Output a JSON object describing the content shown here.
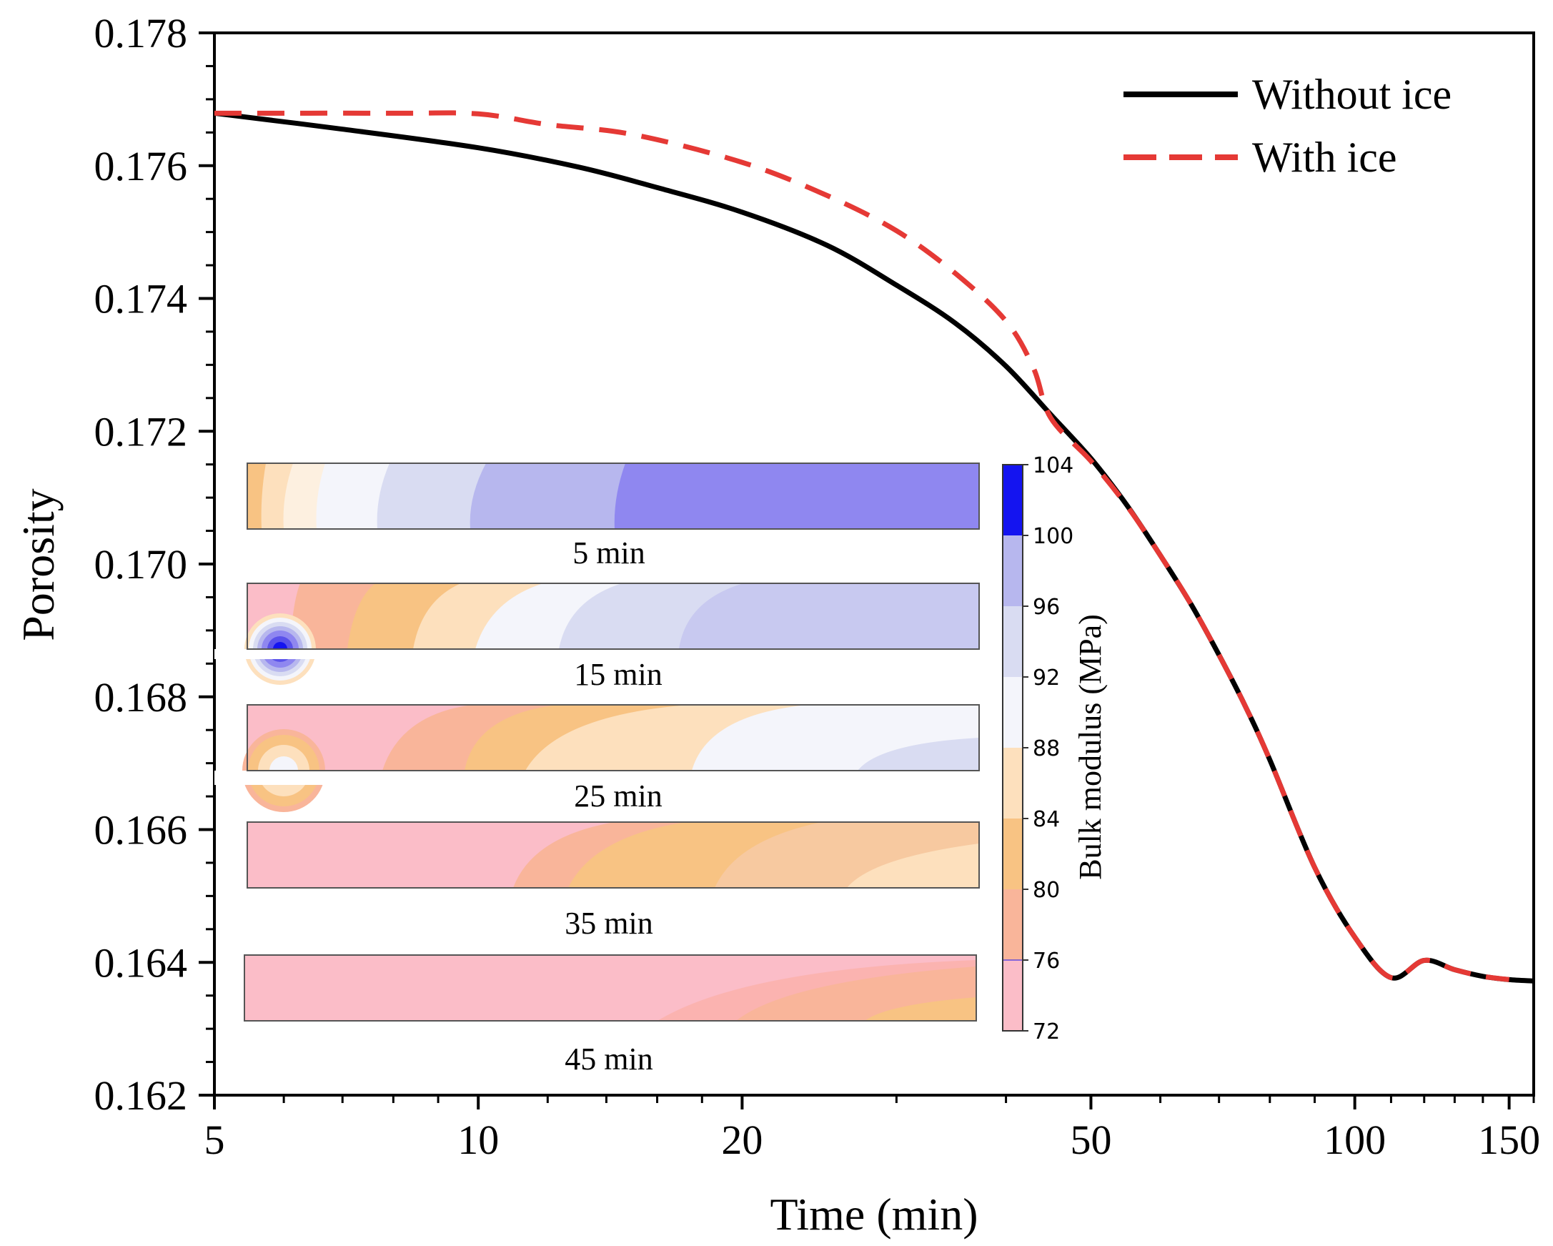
{
  "chart_data": {
    "type": "line",
    "title": "",
    "xlabel": "Time (min)",
    "ylabel": "Porosity",
    "xscale": "log",
    "xlim": [
      5,
      160
    ],
    "ylim": [
      0.162,
      0.178
    ],
    "x_ticks": [
      5,
      10,
      20,
      50,
      100,
      150
    ],
    "x_tick_labels": [
      "5",
      "10",
      "20",
      "50",
      "100",
      "150"
    ],
    "y_ticks": [
      0.162,
      0.164,
      0.166,
      0.168,
      0.17,
      0.172,
      0.174,
      0.176,
      0.178
    ],
    "y_tick_labels": [
      "0.162",
      "0.164",
      "0.166",
      "0.168",
      "0.170",
      "0.172",
      "0.174",
      "0.176",
      "0.178"
    ],
    "legend_position": "top-right",
    "series": [
      {
        "name": "Without ice",
        "color": "#000000",
        "style": "solid",
        "x": [
          5,
          7,
          10,
          13,
          16,
          20,
          25,
          30,
          35,
          40,
          45,
          50,
          55,
          60,
          65,
          70,
          75,
          80,
          90,
          100,
          110,
          120,
          130,
          140,
          150,
          160
        ],
        "y": [
          0.17679,
          0.17655,
          0.17627,
          0.17598,
          0.17567,
          0.1753,
          0.1748,
          0.1742,
          0.17363,
          0.17298,
          0.17225,
          0.17159,
          0.17088,
          0.17013,
          0.1694,
          0.16863,
          0.16786,
          0.16705,
          0.16543,
          0.16438,
          0.16377,
          0.16403,
          0.16389,
          0.16379,
          0.16374,
          0.16372
        ]
      },
      {
        "name": "With ice",
        "color": "#e53935",
        "style": "dashed",
        "x": [
          5,
          8,
          10,
          12,
          15,
          20,
          25,
          30,
          35,
          40,
          43,
          45,
          50,
          55,
          60,
          65,
          70,
          75,
          80,
          90,
          100,
          110,
          120,
          130,
          140,
          150
        ],
        "y": [
          0.17679,
          0.17679,
          0.17678,
          0.17662,
          0.17647,
          0.17605,
          0.17555,
          0.17502,
          0.17438,
          0.17366,
          0.17295,
          0.1722,
          0.17155,
          0.17087,
          0.17013,
          0.1694,
          0.16863,
          0.16786,
          0.16705,
          0.16543,
          0.16438,
          0.16377,
          0.16403,
          0.16389,
          0.16379,
          0.16374
        ]
      }
    ],
    "inset": {
      "colorbar_label": "Bulk modulus (MPa)",
      "colorbar_ticks": [
        72,
        76,
        80,
        84,
        88,
        92,
        96,
        100,
        104
      ],
      "colorbar_colors": [
        "#fbbdc8",
        "#f9b59a",
        "#f8c383",
        "#fde0bd",
        "#f4f5fb",
        "#d9dcf2",
        "#b7b7ee",
        "#8f87f0",
        "#1414f0"
      ],
      "panels": [
        {
          "label": "5 min"
        },
        {
          "label": "15 min"
        },
        {
          "label": "25 min"
        },
        {
          "label": "35 min"
        },
        {
          "label": "45 min"
        }
      ]
    }
  },
  "colors": {
    "palette": {
      "c72": "#fbbdc8",
      "c76": "#f9b59a",
      "c80": "#f8c383",
      "c84": "#fde0bd",
      "c88": "#f4f5fb",
      "c92": "#d9dcf2",
      "c96": "#b7b7ee",
      "c100": "#8f87f0",
      "c104": "#1414f0"
    }
  }
}
